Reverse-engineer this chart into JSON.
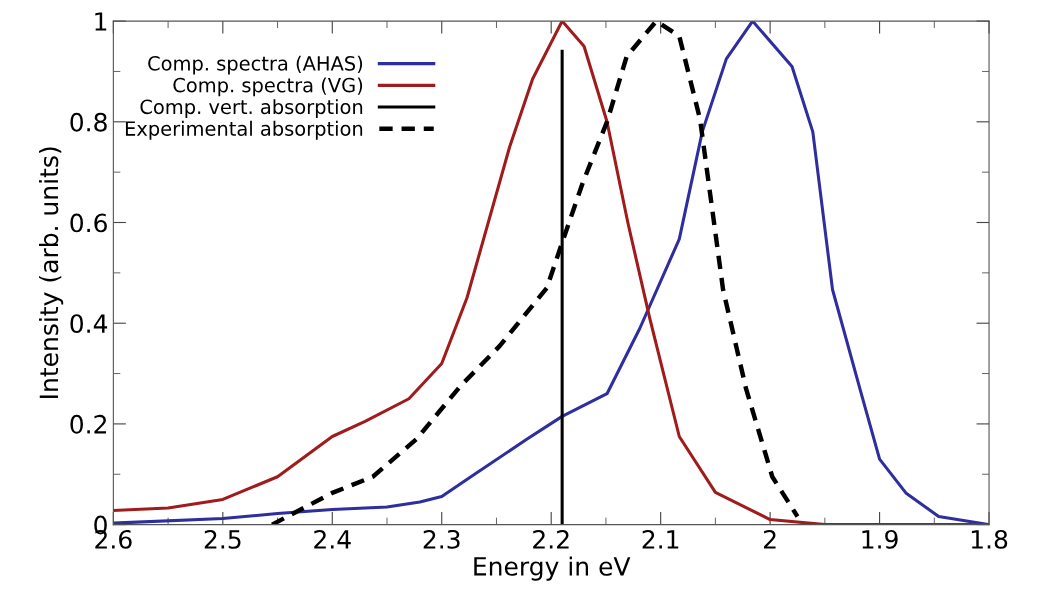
{
  "chart_data": {
    "type": "line",
    "xlabel": "Energy in eV",
    "ylabel": "Intensity (arb. units)",
    "xlim": [
      2.6,
      1.8
    ],
    "ylim": [
      0,
      1
    ],
    "xticks": [
      2.6,
      {
        "value": 2.55,
        "label": null
      },
      2.5,
      {
        "value": 2.45,
        "label": null
      },
      2.4,
      {
        "value": 2.35,
        "label": null
      },
      2.3,
      {
        "value": 2.25,
        "label": null
      },
      2.2,
      {
        "value": 2.15,
        "label": null
      },
      2.1,
      {
        "value": 2.05,
        "label": null
      },
      2,
      {
        "value": 1.95,
        "label": null
      },
      1.9,
      {
        "value": 1.85,
        "label": null
      },
      1.8
    ],
    "yticks": [
      0,
      {
        "value": 0.1,
        "label": null
      },
      0.2,
      {
        "value": 0.3,
        "label": null
      },
      0.4,
      {
        "value": 0.5,
        "label": null
      },
      0.6,
      {
        "value": 0.7,
        "label": null
      },
      0.8,
      {
        "value": 0.9,
        "label": null
      },
      1
    ],
    "grid": false,
    "legend": "top left",
    "series": [
      {
        "name": "Comp. spectra (AHAS)",
        "color": "#2e2e9e",
        "line_style": "solid",
        "x": [
          2.6,
          2.5,
          2.45,
          2.4,
          2.35,
          2.32,
          2.3,
          2.27,
          2.222,
          2.19,
          2.149,
          2.119,
          2.083,
          2.062,
          2.04,
          2.016,
          1.98,
          1.961,
          1.943,
          1.918,
          1.9,
          1.876,
          1.846,
          1.8
        ],
        "values": [
          0.003,
          0.012,
          0.022,
          0.03,
          0.035,
          0.045,
          0.056,
          0.1,
          0.17,
          0.215,
          0.26,
          0.39,
          0.567,
          0.78,
          0.925,
          1.0,
          0.91,
          0.78,
          0.467,
          0.27,
          0.13,
          0.063,
          0.016,
          0.0
        ]
      },
      {
        "name": "Comp. spectra (VG)",
        "color": "#a01c1c",
        "line_style": "solid",
        "x": [
          2.6,
          2.55,
          2.5,
          2.45,
          2.4,
          2.37,
          2.33,
          2.3,
          2.277,
          2.238,
          2.217,
          2.19,
          2.17,
          2.149,
          2.13,
          2.11,
          2.083,
          2.05,
          2.0,
          1.95,
          1.8
        ],
        "values": [
          0.028,
          0.033,
          0.05,
          0.095,
          0.175,
          0.205,
          0.25,
          0.32,
          0.45,
          0.75,
          0.885,
          1.0,
          0.95,
          0.8,
          0.6,
          0.41,
          0.175,
          0.064,
          0.01,
          0.0,
          0.0
        ]
      },
      {
        "name": "Comp. vert. absorption",
        "color": "#000000",
        "line_style": "solid",
        "x": [
          2.19,
          2.19
        ],
        "values": [
          0,
          0.94
        ]
      },
      {
        "name": "Experimental absorption",
        "color": "#000000",
        "line_style": "dashed",
        "x": [
          2.455,
          2.4,
          2.363,
          2.323,
          2.283,
          2.247,
          2.204,
          2.19,
          2.171,
          2.149,
          2.131,
          2.104,
          2.083,
          2.064,
          2.043,
          2.022,
          1.998,
          1.975
        ],
        "values": [
          0.0,
          0.063,
          0.095,
          0.17,
          0.275,
          0.355,
          0.47,
          0.56,
          0.68,
          0.8,
          0.93,
          1.0,
          0.97,
          0.805,
          0.467,
          0.27,
          0.095,
          0.016
        ]
      }
    ]
  }
}
